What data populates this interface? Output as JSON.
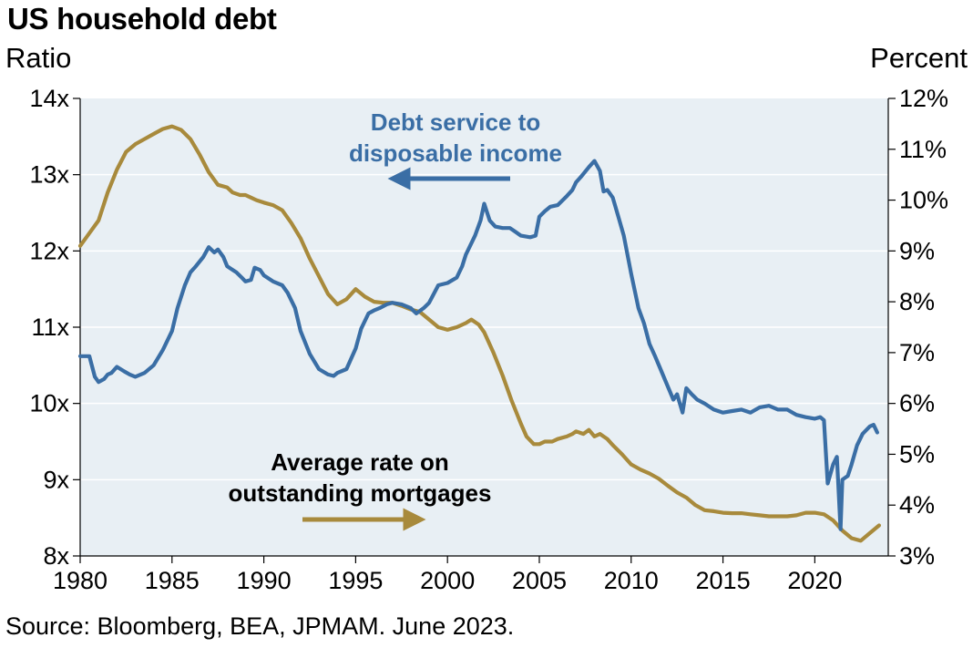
{
  "title": "US household debt",
  "left_axis_unit": "Ratio",
  "right_axis_unit": "Percent",
  "source": "Source: Bloomberg, BEA, JPMAM. June 2023.",
  "colors": {
    "debt_service": "#3a6ea5",
    "mortgage_rate": "#a88a3c",
    "plot_bg": "#e8eff4",
    "grid": "#ffffff"
  },
  "annotations": {
    "debt_service": [
      "Debt service to",
      "disposable income"
    ],
    "mortgage_rate": [
      "Average rate on",
      "outstanding mortgages"
    ]
  },
  "chart_data": {
    "type": "line",
    "title": "US household debt",
    "xlim": [
      1980,
      2024
    ],
    "x_ticks": [
      1980,
      1985,
      1990,
      1995,
      2000,
      2005,
      2010,
      2015,
      2020
    ],
    "x_tick_labels": [
      "1980",
      "1985",
      "1990",
      "1995",
      "2000",
      "2005",
      "2010",
      "2015",
      "2020"
    ],
    "y_left": {
      "label": "Ratio",
      "range": [
        8,
        14
      ],
      "ticks": [
        8,
        9,
        10,
        11,
        12,
        13,
        14
      ],
      "tick_labels": [
        "8x",
        "9x",
        "10x",
        "11x",
        "12x",
        "13x",
        "14x"
      ]
    },
    "y_right": {
      "label": "Percent",
      "range": [
        3,
        12
      ],
      "ticks": [
        3,
        4,
        5,
        6,
        7,
        8,
        9,
        10,
        11,
        12
      ],
      "tick_labels": [
        "3%",
        "4%",
        "5%",
        "6%",
        "7%",
        "8%",
        "9%",
        "10%",
        "11%",
        "12%"
      ]
    },
    "grid": true,
    "series": [
      {
        "name": "Debt service to disposable income",
        "axis": "left",
        "x": [
          1980.0,
          1980.5,
          1980.8,
          1981.0,
          1981.3,
          1981.5,
          1981.7,
          1982.0,
          1982.4,
          1982.7,
          1983.0,
          1983.5,
          1984.0,
          1984.5,
          1985.0,
          1985.3,
          1985.7,
          1986.0,
          1986.3,
          1986.7,
          1987.0,
          1987.3,
          1987.5,
          1987.8,
          1988.0,
          1988.5,
          1988.8,
          1989.0,
          1989.3,
          1989.5,
          1989.8,
          1990.0,
          1990.5,
          1991.0,
          1991.3,
          1991.7,
          1992.0,
          1992.5,
          1993.0,
          1993.5,
          1993.8,
          1994.0,
          1994.5,
          1995.0,
          1995.3,
          1995.7,
          1996.0,
          1996.3,
          1996.7,
          1997.0,
          1997.5,
          1998.0,
          1998.3,
          1998.7,
          1999.0,
          1999.5,
          2000.0,
          2000.5,
          2000.8,
          2001.0,
          2001.5,
          2001.8,
          2002.0,
          2002.3,
          2002.6,
          2003.0,
          2003.4,
          2003.7,
          2004.0,
          2004.5,
          2004.8,
          2005.0,
          2005.3,
          2005.6,
          2006.0,
          2006.5,
          2006.8,
          2007.0,
          2007.3,
          2007.7,
          2008.0,
          2008.3,
          2008.5,
          2008.7,
          2009.0,
          2009.3,
          2009.6,
          2010.0,
          2010.4,
          2010.7,
          2011.0,
          2011.3,
          2011.6,
          2012.0,
          2012.3,
          2012.5,
          2012.8,
          2013.0,
          2013.3,
          2013.6,
          2014.0,
          2014.5,
          2015.0,
          2015.5,
          2016.0,
          2016.5,
          2017.0,
          2017.5,
          2018.0,
          2018.5,
          2019.0,
          2019.5,
          2020.0,
          2020.3,
          2020.5,
          2020.7,
          2021.0,
          2021.2,
          2021.4,
          2021.5,
          2021.8,
          2022.0,
          2022.3,
          2022.6,
          2023.0,
          2023.2,
          2023.4
        ],
        "y": [
          10.62,
          10.62,
          10.35,
          10.28,
          10.32,
          10.38,
          10.4,
          10.48,
          10.42,
          10.38,
          10.35,
          10.4,
          10.5,
          10.7,
          10.95,
          11.25,
          11.55,
          11.72,
          11.8,
          11.92,
          12.05,
          11.98,
          12.02,
          11.92,
          11.8,
          11.72,
          11.65,
          11.6,
          11.62,
          11.78,
          11.75,
          11.68,
          11.6,
          11.55,
          11.45,
          11.25,
          10.95,
          10.65,
          10.45,
          10.38,
          10.36,
          10.4,
          10.45,
          10.72,
          10.98,
          11.18,
          11.22,
          11.25,
          11.3,
          11.32,
          11.3,
          11.25,
          11.18,
          11.25,
          11.32,
          11.55,
          11.58,
          11.65,
          11.8,
          11.95,
          12.2,
          12.4,
          12.62,
          12.4,
          12.32,
          12.3,
          12.3,
          12.25,
          12.2,
          12.18,
          12.2,
          12.45,
          12.52,
          12.58,
          12.6,
          12.72,
          12.8,
          12.9,
          12.98,
          13.1,
          13.18,
          13.05,
          12.78,
          12.8,
          12.7,
          12.45,
          12.2,
          11.7,
          11.25,
          11.05,
          10.78,
          10.62,
          10.45,
          10.22,
          10.05,
          10.12,
          9.88,
          10.2,
          10.12,
          10.05,
          10.0,
          9.92,
          9.88,
          9.9,
          9.92,
          9.88,
          9.95,
          9.97,
          9.92,
          9.92,
          9.85,
          9.82,
          9.8,
          9.82,
          9.78,
          8.95,
          9.2,
          9.3,
          8.35,
          9.0,
          9.05,
          9.2,
          9.45,
          9.6,
          9.7,
          9.72,
          9.62
        ]
      },
      {
        "name": "Average rate on outstanding mortgages",
        "axis": "right",
        "x": [
          1980.0,
          1980.5,
          1981.0,
          1981.5,
          1982.0,
          1982.5,
          1983.0,
          1983.5,
          1984.0,
          1984.5,
          1985.0,
          1985.5,
          1986.0,
          1986.5,
          1987.0,
          1987.5,
          1988.0,
          1988.3,
          1988.7,
          1989.0,
          1989.3,
          1989.6,
          1990.0,
          1990.5,
          1991.0,
          1991.5,
          1992.0,
          1992.5,
          1993.0,
          1993.5,
          1994.0,
          1994.5,
          1995.0,
          1995.5,
          1996.0,
          1996.5,
          1997.0,
          1997.5,
          1998.0,
          1998.5,
          1999.0,
          1999.5,
          2000.0,
          2000.5,
          2001.0,
          2001.3,
          2001.7,
          2002.0,
          2002.5,
          2003.0,
          2003.5,
          2004.0,
          2004.3,
          2004.7,
          2005.0,
          2005.3,
          2005.7,
          2006.0,
          2006.5,
          2006.8,
          2007.0,
          2007.4,
          2007.7,
          2008.0,
          2008.3,
          2008.7,
          2009.0,
          2009.5,
          2010.0,
          2010.5,
          2011.0,
          2011.5,
          2012.0,
          2012.5,
          2013.0,
          2013.5,
          2014.0,
          2014.5,
          2015.0,
          2015.5,
          2016.0,
          2016.5,
          2017.0,
          2017.5,
          2018.0,
          2018.5,
          2019.0,
          2019.5,
          2020.0,
          2020.5,
          2021.0,
          2021.5,
          2022.0,
          2022.5,
          2023.0,
          2023.5
        ],
        "y": [
          9.1,
          9.35,
          9.6,
          10.15,
          10.6,
          10.95,
          11.1,
          11.2,
          11.3,
          11.4,
          11.45,
          11.38,
          11.2,
          10.9,
          10.55,
          10.3,
          10.25,
          10.15,
          10.1,
          10.1,
          10.05,
          10.0,
          9.95,
          9.9,
          9.8,
          9.55,
          9.25,
          8.85,
          8.5,
          8.15,
          7.95,
          8.05,
          8.25,
          8.1,
          8.0,
          7.98,
          7.98,
          7.92,
          7.85,
          7.8,
          7.65,
          7.5,
          7.45,
          7.5,
          7.58,
          7.65,
          7.55,
          7.4,
          7.0,
          6.55,
          6.05,
          5.6,
          5.35,
          5.2,
          5.2,
          5.25,
          5.25,
          5.3,
          5.35,
          5.4,
          5.45,
          5.4,
          5.48,
          5.35,
          5.4,
          5.3,
          5.18,
          5.0,
          4.8,
          4.7,
          4.62,
          4.52,
          4.38,
          4.25,
          4.15,
          4.0,
          3.9,
          3.88,
          3.85,
          3.84,
          3.84,
          3.82,
          3.8,
          3.78,
          3.78,
          3.78,
          3.8,
          3.85,
          3.85,
          3.82,
          3.7,
          3.5,
          3.35,
          3.3,
          3.45,
          3.6
        ]
      }
    ]
  }
}
